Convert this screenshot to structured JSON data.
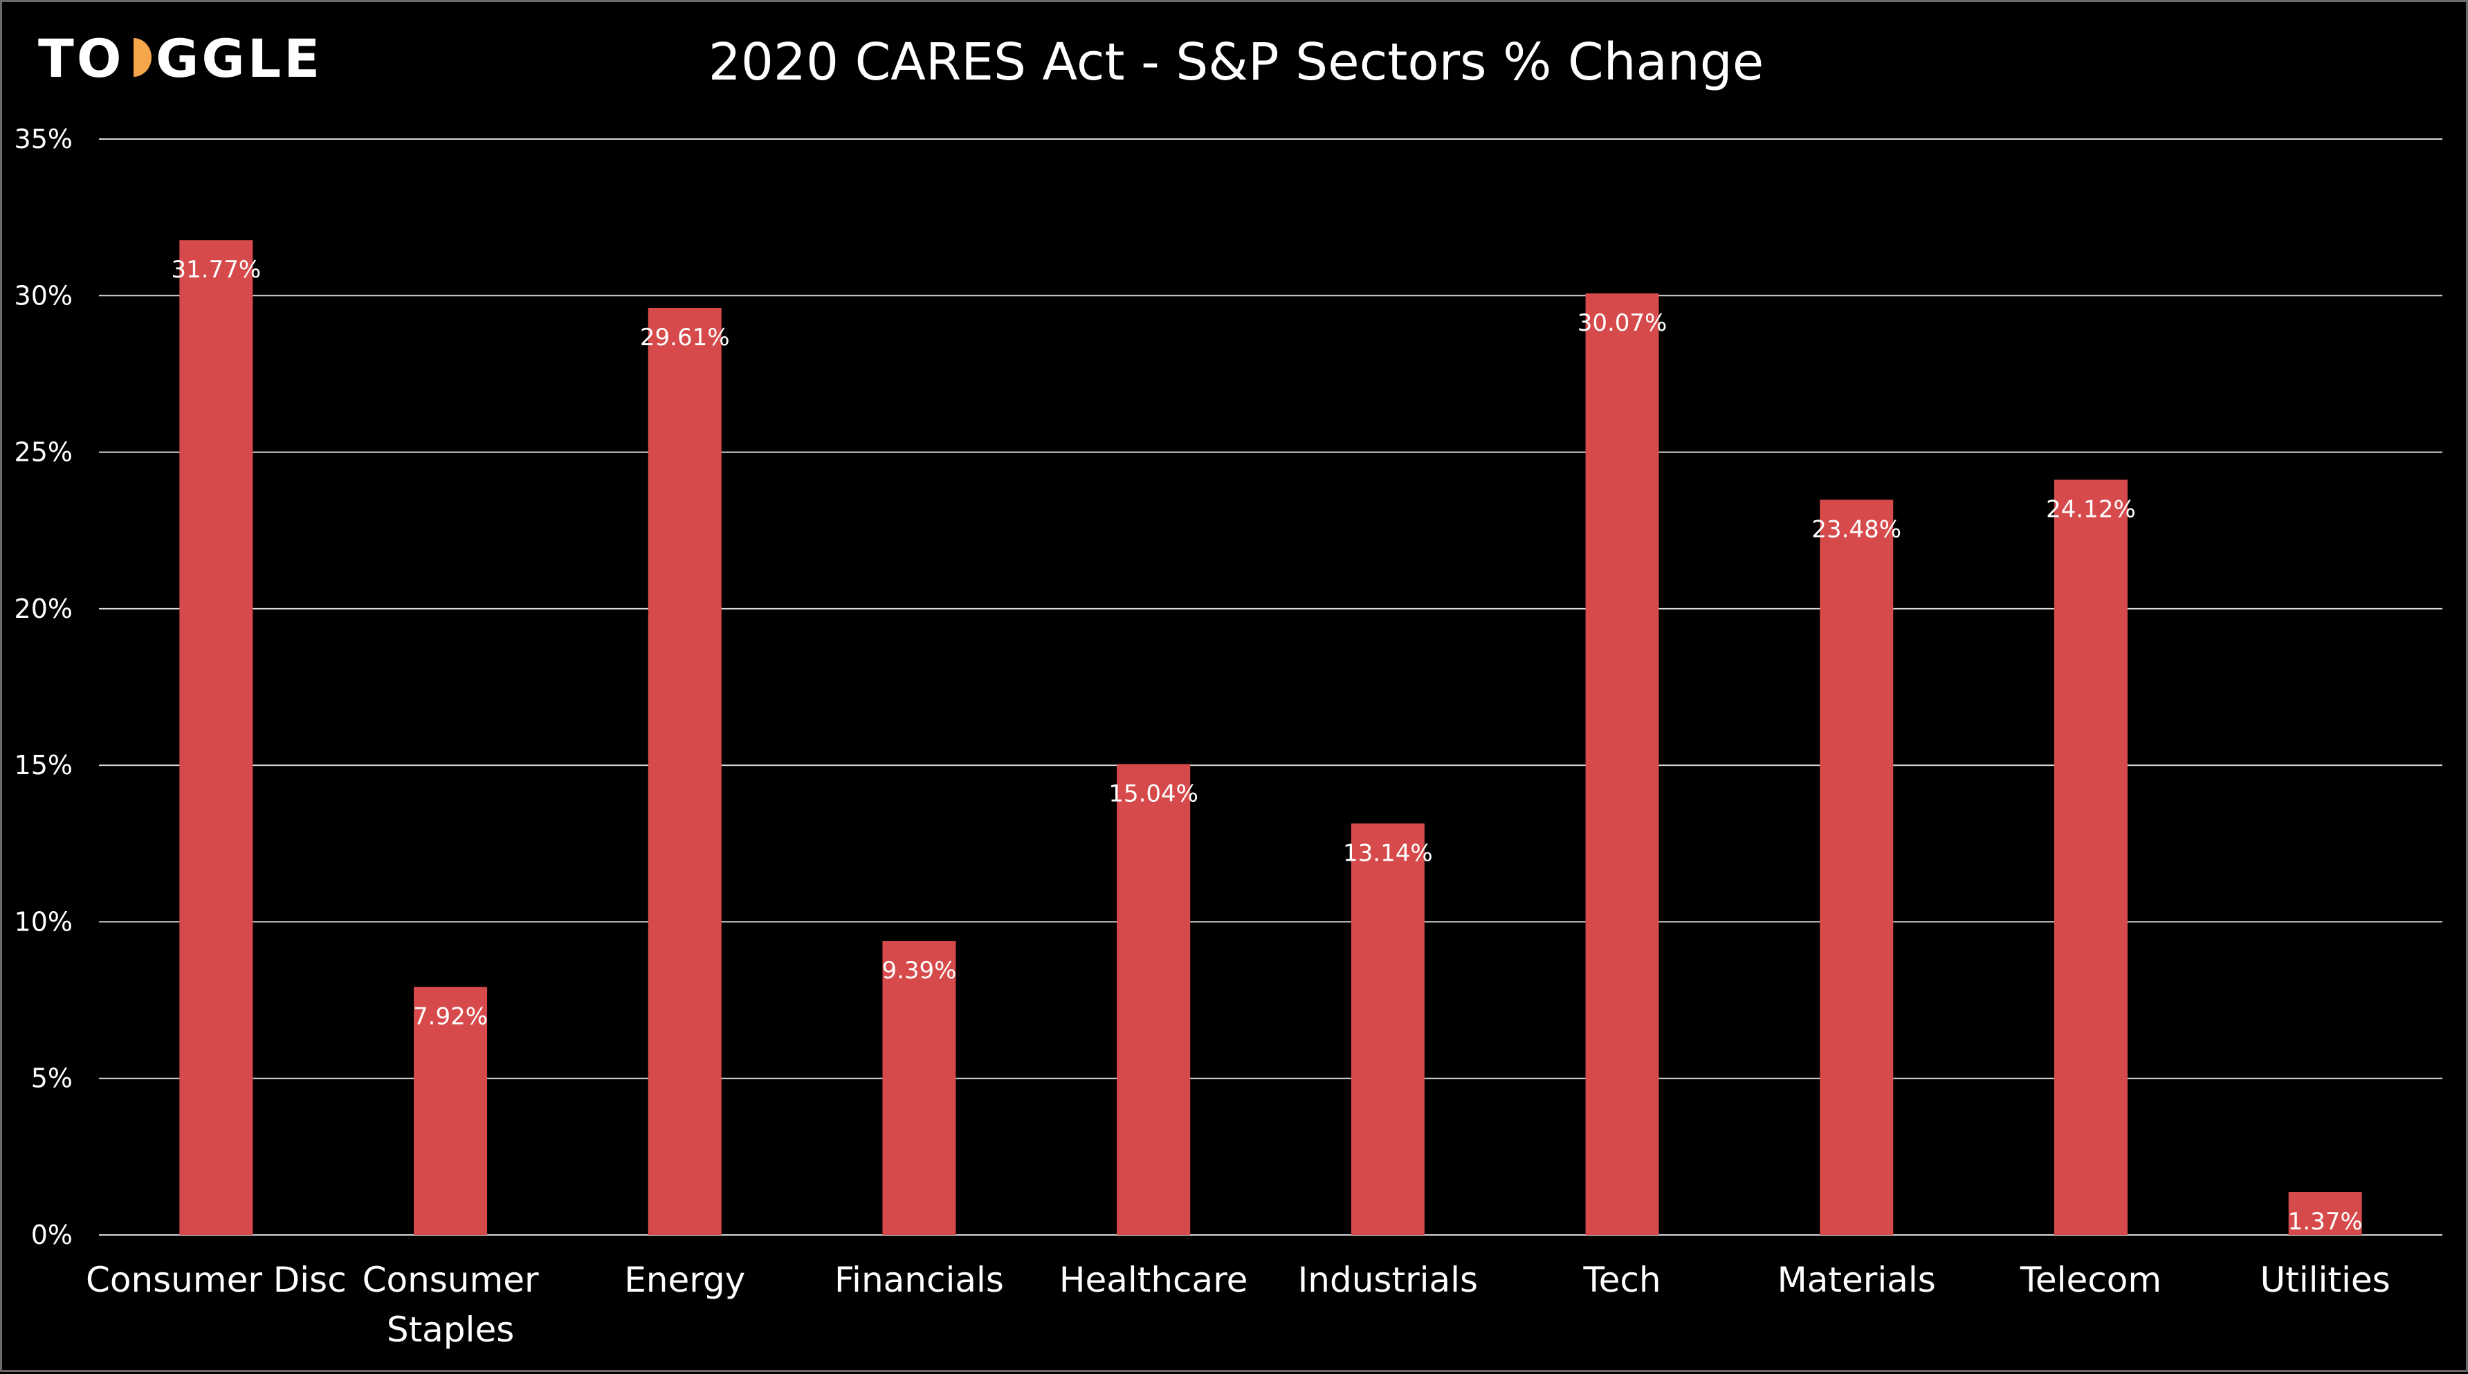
{
  "brand": {
    "logo_text": "TOGGLE",
    "text_color": "#ffffff",
    "accent_color": "#f5a64a"
  },
  "chart_data": {
    "type": "bar",
    "title": "2020 CARES Act - S&P Sectors % Change",
    "xlabel": "",
    "ylabel": "",
    "categories": [
      [
        "Consumer Disc"
      ],
      [
        "Consumer",
        "Staples"
      ],
      [
        "Energy"
      ],
      [
        "Financials"
      ],
      [
        "Healthcare"
      ],
      [
        "Industrials"
      ],
      [
        "Tech"
      ],
      [
        "Materials"
      ],
      [
        "Telecom"
      ],
      [
        "Utilities"
      ]
    ],
    "values": [
      31.77,
      7.92,
      29.61,
      9.39,
      15.04,
      13.14,
      30.07,
      23.48,
      24.12,
      1.37
    ],
    "data_labels": [
      "31.77%",
      "7.92%",
      "29.61%",
      "9.39%",
      "15.04%",
      "13.14%",
      "30.07%",
      "23.48%",
      "24.12%",
      "1.37%"
    ],
    "ylim": [
      0,
      35
    ],
    "yticks": [
      0,
      5,
      10,
      15,
      20,
      25,
      30,
      35
    ],
    "ytick_labels": [
      "0%",
      "5%",
      "10%",
      "15%",
      "20%",
      "25%",
      "30%",
      "35%"
    ],
    "grid": true,
    "legend": "none",
    "bar_color": "#d64a4b",
    "background": "#000000"
  }
}
